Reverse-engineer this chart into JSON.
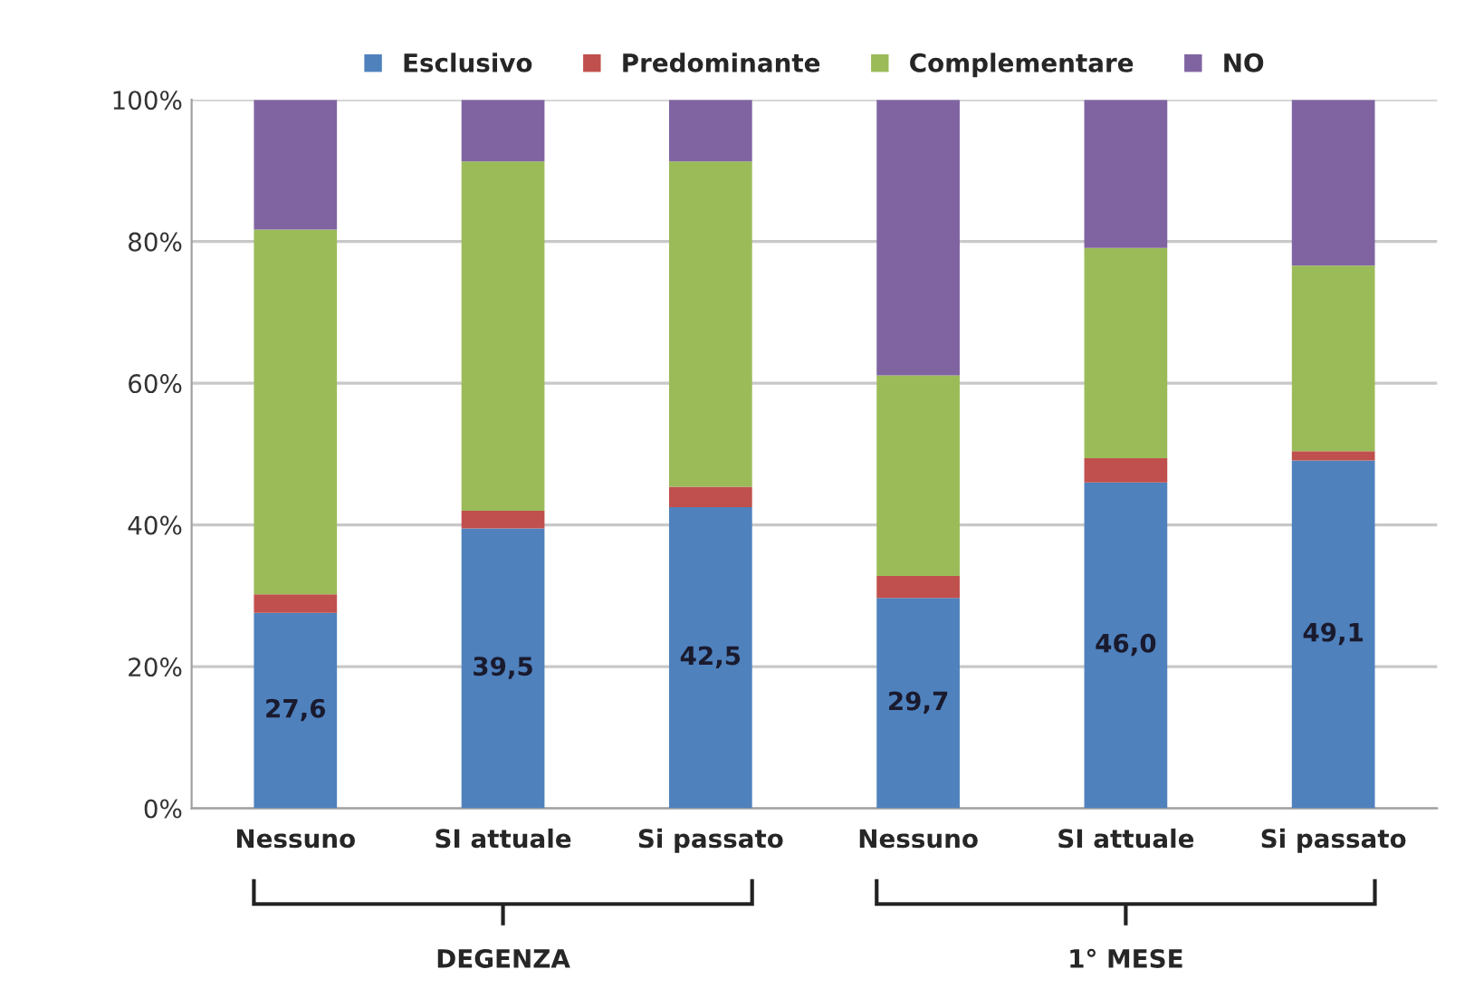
{
  "chart_data": {
    "type": "bar",
    "stacked": true,
    "categories": [
      "Nessuno",
      "SI attuale",
      "Si passato",
      "Nessuno",
      "SI attuale",
      "Si passato"
    ],
    "series": [
      {
        "name": "Esclusivo",
        "color": "#4f81bd",
        "values": [
          27.6,
          39.5,
          42.5,
          29.7,
          46.0,
          49.1
        ],
        "value_labels": [
          "27,6",
          "39,5",
          "42,5",
          "29,7",
          "46,0",
          "49,1"
        ]
      },
      {
        "name": "Predominante",
        "color": "#c0504d",
        "values": [
          2.6,
          2.5,
          2.9,
          3.1,
          3.4,
          1.3
        ]
      },
      {
        "name": "Complementare",
        "color": "#9bbb59",
        "values": [
          51.5,
          49.3,
          45.9,
          28.3,
          29.7,
          26.2
        ]
      },
      {
        "name": "NO",
        "color": "#8064a2",
        "values": [
          18.3,
          8.7,
          8.7,
          38.9,
          20.9,
          23.4
        ]
      }
    ],
    "ylim": [
      0,
      100
    ],
    "yticks": [
      {
        "value": 0,
        "label": "0%"
      },
      {
        "value": 20,
        "label": "20%"
      },
      {
        "value": 40,
        "label": "40%"
      },
      {
        "value": 60,
        "label": "60%"
      },
      {
        "value": 80,
        "label": "80%"
      },
      {
        "value": 100,
        "label": "100%"
      }
    ],
    "grid": "y",
    "legend": "top",
    "annotations": [
      "DEGENZA",
      "1° MESE"
    ]
  }
}
